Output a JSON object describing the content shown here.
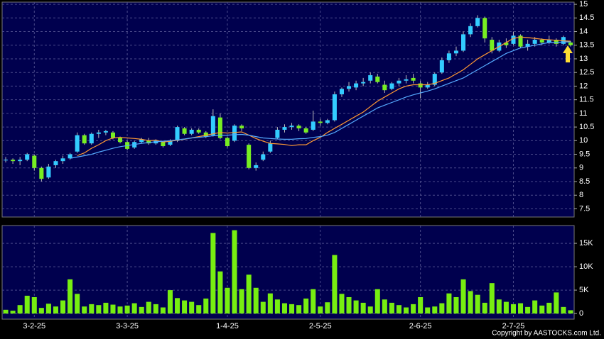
{
  "chart_data": [
    {
      "type": "candlestick",
      "ylim": [
        7.2,
        15.08
      ],
      "yticks": [
        7.5,
        8,
        8.5,
        9,
        9.5,
        10,
        10.5,
        11,
        11.5,
        12,
        12.5,
        13,
        13.5,
        14,
        14.5,
        15
      ],
      "grid": true,
      "up_color": "#33ccff",
      "down_color": "#77ee22",
      "wick_color": "#bbbbbb",
      "open": [
        9.3,
        9.3,
        9.25,
        9.3,
        9.45,
        9.0,
        8.65,
        9.1,
        9.25,
        9.35,
        9.6,
        10.2,
        9.9,
        10.25,
        10.3,
        10.3,
        10.1,
        9.95,
        9.75,
        9.95,
        10.0,
        9.9,
        9.95,
        9.85,
        10.0,
        10.45,
        10.25,
        10.4,
        10.3,
        10.2,
        10.85,
        10.1,
        10.0,
        10.55,
        9.85,
        9.0,
        9.3,
        9.6,
        10.1,
        10.4,
        10.5,
        10.55,
        10.45,
        10.4,
        10.7,
        10.65,
        10.75,
        11.7,
        11.9,
        11.95,
        12.1,
        12.2,
        12.35,
        12.05,
        11.9,
        12.1,
        12.2,
        12.3,
        12.1,
        11.95,
        12.05,
        12.5,
        12.95,
        13.2,
        13.3,
        13.9,
        14.2,
        14.5,
        13.7,
        13.3,
        13.6,
        13.55,
        13.85,
        13.45,
        13.55,
        13.7,
        13.6,
        13.7,
        13.55,
        13.6
      ],
      "high": [
        9.4,
        9.35,
        9.4,
        9.55,
        9.5,
        9.05,
        9.15,
        9.3,
        9.45,
        9.55,
        10.3,
        10.25,
        10.3,
        10.4,
        10.4,
        10.35,
        10.15,
        10.0,
        10.0,
        10.1,
        10.1,
        10.05,
        10.0,
        10.05,
        10.55,
        10.5,
        10.45,
        10.45,
        10.35,
        11.15,
        11.0,
        10.15,
        10.6,
        10.6,
        9.9,
        9.2,
        9.6,
        10.0,
        10.5,
        10.6,
        10.65,
        10.6,
        10.5,
        11.1,
        10.8,
        10.8,
        11.8,
        11.95,
        12.15,
        12.2,
        12.3,
        12.5,
        12.45,
        12.2,
        12.15,
        12.3,
        12.4,
        12.45,
        12.2,
        12.15,
        12.5,
        13.05,
        13.3,
        13.45,
        14.0,
        14.3,
        14.6,
        14.55,
        13.8,
        13.7,
        13.75,
        14.0,
        13.9,
        13.7,
        13.8,
        13.75,
        13.85,
        13.75,
        13.85,
        13.65
      ],
      "low": [
        9.2,
        9.15,
        9.1,
        9.25,
        8.9,
        8.5,
        8.6,
        9.0,
        9.15,
        9.3,
        9.55,
        9.85,
        9.85,
        10.1,
        10.2,
        10.05,
        9.9,
        9.65,
        9.7,
        9.9,
        9.85,
        9.85,
        9.75,
        9.8,
        9.95,
        10.2,
        10.2,
        10.25,
        10.1,
        10.15,
        10.05,
        9.75,
        9.95,
        10.35,
        8.95,
        8.9,
        9.25,
        9.55,
        10.05,
        10.3,
        10.4,
        10.35,
        10.25,
        10.35,
        10.55,
        10.6,
        10.7,
        11.6,
        11.8,
        11.85,
        12.0,
        12.1,
        12.1,
        11.75,
        11.85,
        12.0,
        12.1,
        12.1,
        11.55,
        11.9,
        12.0,
        12.45,
        12.85,
        13.1,
        13.25,
        13.8,
        14.15,
        13.6,
        13.2,
        13.25,
        13.4,
        13.5,
        13.4,
        13.3,
        13.45,
        13.5,
        13.55,
        13.45,
        13.5,
        13.45
      ],
      "close": [
        9.3,
        9.25,
        9.3,
        9.5,
        9.0,
        8.6,
        9.05,
        9.25,
        9.35,
        9.5,
        10.2,
        9.9,
        10.25,
        10.3,
        10.35,
        10.1,
        9.95,
        9.7,
        9.95,
        10.05,
        9.9,
        10.0,
        9.8,
        10.0,
        10.5,
        10.25,
        10.4,
        10.3,
        10.15,
        10.9,
        10.1,
        9.8,
        10.55,
        10.45,
        9.0,
        9.1,
        9.5,
        9.9,
        10.4,
        10.5,
        10.55,
        10.45,
        10.3,
        10.7,
        10.65,
        10.75,
        11.7,
        11.9,
        12.0,
        12.1,
        12.15,
        12.4,
        12.15,
        11.85,
        12.1,
        12.2,
        12.25,
        12.2,
        11.95,
        12.05,
        12.45,
        12.95,
        13.2,
        13.3,
        13.9,
        14.2,
        14.5,
        13.75,
        13.3,
        13.6,
        13.5,
        13.85,
        13.45,
        13.55,
        13.7,
        13.6,
        13.7,
        13.55,
        13.8,
        13.5
      ],
      "lines": [
        {
          "color": "#ff9933",
          "values": [
            null,
            null,
            null,
            null,
            null,
            null,
            null,
            null,
            null,
            null,
            9.45,
            9.55,
            9.72,
            9.85,
            10.0,
            10.1,
            10.12,
            10.1,
            10.08,
            10.05,
            10.0,
            10.02,
            9.95,
            9.98,
            10.02,
            10.05,
            10.1,
            10.15,
            10.2,
            10.25,
            10.3,
            10.28,
            10.3,
            10.32,
            10.2,
            10.08,
            9.98,
            9.9,
            9.88,
            9.86,
            9.82,
            9.85,
            9.85,
            10.0,
            10.12,
            10.3,
            10.45,
            10.6,
            10.75,
            10.9,
            11.05,
            11.25,
            11.45,
            11.6,
            11.75,
            11.9,
            12.0,
            12.05,
            12.05,
            12.05,
            12.1,
            12.2,
            12.3,
            12.45,
            12.6,
            12.8,
            13.0,
            13.15,
            13.3,
            13.45,
            13.6,
            13.75,
            13.8,
            13.78,
            13.75,
            13.72,
            13.7,
            13.68,
            13.66,
            13.65
          ]
        },
        {
          "color": "#55aaff",
          "values": [
            null,
            null,
            null,
            null,
            null,
            null,
            null,
            null,
            null,
            9.35,
            9.4,
            9.45,
            9.5,
            9.58,
            9.65,
            9.72,
            9.78,
            9.82,
            9.86,
            9.9,
            9.93,
            9.96,
            9.98,
            10.0,
            10.03,
            10.06,
            10.1,
            10.12,
            10.15,
            10.18,
            10.2,
            10.2,
            10.22,
            10.23,
            10.2,
            10.15,
            10.1,
            10.08,
            10.06,
            10.05,
            10.05,
            10.07,
            10.08,
            10.12,
            10.15,
            10.2,
            10.3,
            10.45,
            10.6,
            10.75,
            10.9,
            11.05,
            11.2,
            11.3,
            11.4,
            11.5,
            11.6,
            11.68,
            11.75,
            11.82,
            11.9,
            12.0,
            12.1,
            12.2,
            12.3,
            12.45,
            12.6,
            12.75,
            12.9,
            13.05,
            13.2,
            13.3,
            13.4,
            13.45,
            13.5,
            13.55,
            13.6,
            13.6,
            13.62,
            13.62
          ]
        }
      ]
    },
    {
      "type": "bar",
      "ylim": [
        -1200,
        18800
      ],
      "yticks": [
        0,
        {
          "value": 5000,
          "label": "5K"
        },
        {
          "value": 10000,
          "label": "10K"
        },
        {
          "value": 15000,
          "label": "15K"
        }
      ],
      "grid": true,
      "color": "#77ee11",
      "categories": [
        null,
        null,
        null,
        null,
        "3-2-25",
        null,
        null,
        null,
        null,
        null,
        null,
        null,
        null,
        null,
        null,
        null,
        null,
        "3-3-25",
        null,
        null,
        null,
        null,
        null,
        null,
        null,
        null,
        null,
        null,
        null,
        null,
        null,
        "1-4-25",
        null,
        null,
        null,
        null,
        null,
        null,
        null,
        null,
        null,
        null,
        null,
        null,
        "2-5-25",
        null,
        null,
        null,
        null,
        null,
        null,
        null,
        null,
        null,
        null,
        null,
        null,
        null,
        "2-6-25",
        null,
        null,
        null,
        null,
        null,
        null,
        null,
        null,
        null,
        null,
        null,
        null,
        "2-7-25",
        null,
        null,
        null,
        null,
        null,
        null,
        null,
        null
      ],
      "values": [
        800,
        600,
        1800,
        3800,
        3500,
        1200,
        2100,
        1500,
        2800,
        7300,
        4200,
        1500,
        2000,
        1800,
        2300,
        1900,
        1500,
        1700,
        2200,
        1400,
        2500,
        2000,
        1300,
        5000,
        3300,
        2800,
        2500,
        1800,
        3200,
        17200,
        9000,
        5500,
        17800,
        5200,
        8300,
        5500,
        2500,
        4300,
        3000,
        2200,
        2000,
        1800,
        3200,
        5200,
        1500,
        2400,
        12500,
        4200,
        3500,
        2800,
        2300,
        1500,
        5200,
        3000,
        2300,
        1800,
        1300,
        2000,
        3500,
        1300,
        1500,
        2200,
        4300,
        3500,
        7300,
        4800,
        4000,
        2300,
        6500,
        3000,
        2500,
        2000,
        2200,
        1400,
        2800,
        1700,
        2300,
        4500,
        1400,
        700
      ],
      "credit": "Copyright by AASTOCKS.com Ltd."
    }
  ]
}
